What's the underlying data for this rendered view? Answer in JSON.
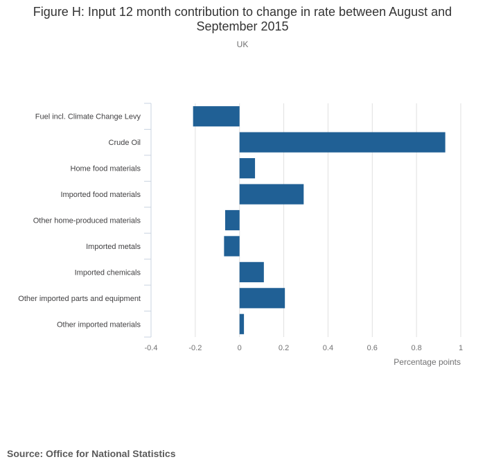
{
  "chart_data": {
    "type": "bar",
    "orientation": "horizontal",
    "title": "Figure H: Input 12 month contribution to change in rate between August and September 2015",
    "subtitle": "UK",
    "xlabel": "Percentage points",
    "ylabel": "",
    "categories": [
      "Fuel incl. Climate Change Levy",
      "Crude Oil",
      "Home food materials",
      "Imported food materials",
      "Other home-produced materials",
      "Imported metals",
      "Imported chemicals",
      "Other imported parts and equipment",
      "Other imported materials"
    ],
    "values": [
      -0.21,
      0.93,
      0.07,
      0.29,
      -0.065,
      -0.07,
      0.11,
      0.205,
      0.02
    ],
    "xlim": [
      -0.4,
      1
    ],
    "xticks": [
      -0.4,
      -0.2,
      0,
      0.2,
      0.4,
      0.6,
      0.8,
      1
    ],
    "bar_color": "#206095",
    "grid_color": "#e0e0e0",
    "axis_color": "#c9d3e0",
    "grid": true,
    "legend": "none"
  },
  "source": "Source: Office for National Statistics"
}
